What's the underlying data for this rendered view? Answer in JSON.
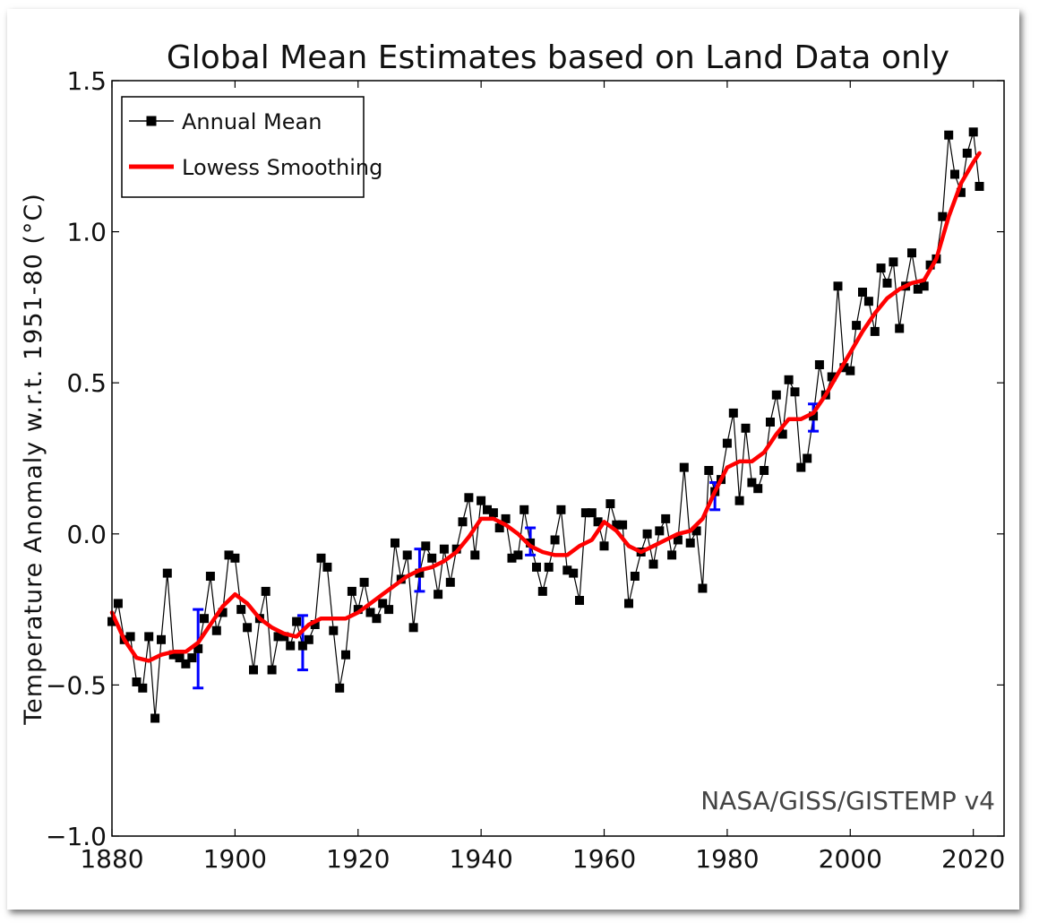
{
  "chart_data": {
    "type": "line",
    "title": "Global Mean Estimates based on Land Data only",
    "xlabel": "",
    "ylabel": "Temperature Anomaly w.r.t. 1951-80 (°C)",
    "xlim": [
      1880,
      2025
    ],
    "ylim": [
      -1.0,
      1.5
    ],
    "xticks": [
      1880,
      1900,
      1920,
      1940,
      1960,
      1980,
      2000,
      2020
    ],
    "yticks": [
      -1.0,
      -0.5,
      0.0,
      0.5,
      1.0,
      1.5
    ],
    "xtick_labels": [
      "1880",
      "1900",
      "1920",
      "1940",
      "1960",
      "1980",
      "2000",
      "2020"
    ],
    "ytick_labels": [
      "−1.0",
      "−0.5",
      "0.0",
      "0.5",
      "1.0",
      "1.5"
    ],
    "grid": false,
    "legend_placement": "top-left",
    "annotation": "NASA/GISS/GISTEMP v4",
    "series": [
      {
        "name": "Annual Mean",
        "color": "#000000",
        "marker": "square",
        "x": [
          1880,
          1881,
          1882,
          1883,
          1884,
          1885,
          1886,
          1887,
          1888,
          1889,
          1890,
          1891,
          1892,
          1893,
          1894,
          1895,
          1896,
          1897,
          1898,
          1899,
          1900,
          1901,
          1902,
          1903,
          1904,
          1905,
          1906,
          1907,
          1908,
          1909,
          1910,
          1911,
          1912,
          1913,
          1914,
          1915,
          1916,
          1917,
          1918,
          1919,
          1920,
          1921,
          1922,
          1923,
          1924,
          1925,
          1926,
          1927,
          1928,
          1929,
          1930,
          1931,
          1932,
          1933,
          1934,
          1935,
          1936,
          1937,
          1938,
          1939,
          1940,
          1941,
          1942,
          1943,
          1944,
          1945,
          1946,
          1947,
          1948,
          1949,
          1950,
          1951,
          1952,
          1953,
          1954,
          1955,
          1956,
          1957,
          1958,
          1959,
          1960,
          1961,
          1962,
          1963,
          1964,
          1965,
          1966,
          1967,
          1968,
          1969,
          1970,
          1971,
          1972,
          1973,
          1974,
          1975,
          1976,
          1977,
          1978,
          1979,
          1980,
          1981,
          1982,
          1983,
          1984,
          1985,
          1986,
          1987,
          1988,
          1989,
          1990,
          1991,
          1992,
          1993,
          1994,
          1995,
          1996,
          1997,
          1998,
          1999,
          2000,
          2001,
          2002,
          2003,
          2004,
          2005,
          2006,
          2007,
          2008,
          2009,
          2010,
          2011,
          2012,
          2013,
          2014,
          2015,
          2016,
          2017,
          2018,
          2019,
          2020,
          2021
        ],
        "values": [
          -0.29,
          -0.23,
          -0.35,
          -0.34,
          -0.49,
          -0.51,
          -0.34,
          -0.61,
          -0.35,
          -0.13,
          -0.4,
          -0.41,
          -0.43,
          -0.41,
          -0.38,
          -0.28,
          -0.14,
          -0.32,
          -0.26,
          -0.07,
          -0.08,
          -0.25,
          -0.31,
          -0.45,
          -0.28,
          -0.19,
          -0.45,
          -0.34,
          -0.34,
          -0.37,
          -0.29,
          -0.37,
          -0.35,
          -0.3,
          -0.08,
          -0.11,
          -0.32,
          -0.51,
          -0.4,
          -0.19,
          -0.25,
          -0.16,
          -0.26,
          -0.28,
          -0.23,
          -0.25,
          -0.03,
          -0.15,
          -0.07,
          -0.31,
          -0.13,
          -0.04,
          -0.08,
          -0.2,
          -0.05,
          -0.16,
          -0.05,
          0.04,
          0.12,
          -0.07,
          0.11,
          0.08,
          0.07,
          0.02,
          0.05,
          -0.08,
          -0.07,
          0.08,
          -0.03,
          -0.11,
          -0.19,
          -0.11,
          -0.02,
          0.08,
          -0.12,
          -0.13,
          -0.22,
          0.07,
          0.07,
          0.04,
          -0.04,
          0.1,
          0.03,
          0.03,
          -0.23,
          -0.14,
          -0.06,
          0.0,
          -0.1,
          0.01,
          0.05,
          -0.07,
          -0.02,
          0.22,
          -0.03,
          0.01,
          -0.18,
          0.21,
          0.14,
          0.18,
          0.3,
          0.4,
          0.11,
          0.35,
          0.17,
          0.15,
          0.21,
          0.37,
          0.46,
          0.33,
          0.51,
          0.47,
          0.22,
          0.25,
          0.39,
          0.56,
          0.46,
          0.52,
          0.82,
          0.55,
          0.54,
          0.69,
          0.8,
          0.77,
          0.67,
          0.88,
          0.83,
          0.9,
          0.68,
          0.82,
          0.93,
          0.81,
          0.82,
          0.89,
          0.91,
          1.05,
          1.32,
          1.19,
          1.13,
          1.26,
          1.33,
          1.15
        ]
      },
      {
        "name": "Lowess Smoothing",
        "color": "#ff0000",
        "x": [
          1880,
          1882,
          1884,
          1886,
          1888,
          1890,
          1892,
          1894,
          1896,
          1898,
          1900,
          1902,
          1904,
          1906,
          1908,
          1910,
          1912,
          1914,
          1916,
          1918,
          1920,
          1922,
          1924,
          1926,
          1928,
          1930,
          1932,
          1934,
          1936,
          1938,
          1940,
          1942,
          1944,
          1946,
          1948,
          1950,
          1952,
          1954,
          1956,
          1958,
          1960,
          1962,
          1964,
          1966,
          1968,
          1970,
          1972,
          1974,
          1976,
          1978,
          1980,
          1982,
          1984,
          1986,
          1988,
          1990,
          1992,
          1994,
          1996,
          1998,
          2000,
          2002,
          2004,
          2006,
          2008,
          2010,
          2012,
          2014,
          2016,
          2018,
          2020,
          2021
        ],
        "values": [
          -0.26,
          -0.35,
          -0.41,
          -0.42,
          -0.4,
          -0.39,
          -0.39,
          -0.36,
          -0.3,
          -0.24,
          -0.2,
          -0.23,
          -0.28,
          -0.31,
          -0.33,
          -0.34,
          -0.3,
          -0.28,
          -0.28,
          -0.28,
          -0.26,
          -0.23,
          -0.2,
          -0.17,
          -0.14,
          -0.12,
          -0.11,
          -0.09,
          -0.06,
          -0.01,
          0.05,
          0.05,
          0.03,
          0.0,
          -0.04,
          -0.06,
          -0.07,
          -0.07,
          -0.04,
          -0.02,
          0.04,
          0.01,
          -0.04,
          -0.06,
          -0.04,
          -0.02,
          0.0,
          0.01,
          0.05,
          0.14,
          0.22,
          0.24,
          0.24,
          0.27,
          0.33,
          0.38,
          0.38,
          0.4,
          0.46,
          0.53,
          0.6,
          0.67,
          0.73,
          0.78,
          0.81,
          0.83,
          0.84,
          0.91,
          1.05,
          1.16,
          1.23,
          1.26
        ]
      }
    ],
    "error_bars": {
      "color": "#0000ff",
      "x": [
        1894,
        1911,
        1930,
        1948,
        1978,
        1994
      ],
      "low": [
        -0.51,
        -0.45,
        -0.19,
        -0.07,
        0.08,
        0.34
      ],
      "high": [
        -0.25,
        -0.27,
        -0.05,
        0.02,
        0.17,
        0.43
      ]
    }
  }
}
